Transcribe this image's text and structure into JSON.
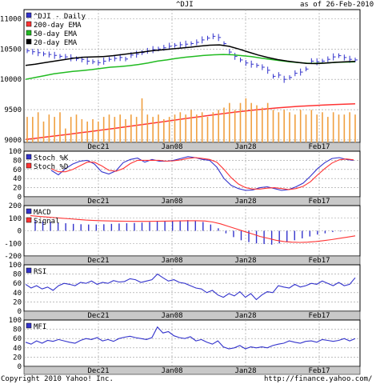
{
  "header": {
    "symbol": "^DJI",
    "as_of": "as of 26-Feb-2010"
  },
  "footer": {
    "copyright": "Copyright 2010 Yahoo! Inc.",
    "url": "http://finance.yahoo.com/"
  },
  "colors": {
    "price": "#3333cc",
    "ema200": "#ff3333",
    "ema50": "#22bb22",
    "ema20": "#000000",
    "volume": "#f0a040",
    "stoch_k": "#3333cc",
    "stoch_d": "#ff3333",
    "macd": "#3333cc",
    "signal": "#ff3333",
    "rsi": "#3333cc",
    "mfi": "#3333cc",
    "band": "#c8c8c8"
  },
  "chart_data": [
    {
      "type": "line",
      "panel": "price",
      "x_ticks": [
        "Dec21",
        "Jan08",
        "Jan28",
        "Feb17"
      ],
      "y_ticks": [
        9000,
        9500,
        10000,
        10500,
        11000
      ],
      "ylim": [
        8960,
        11150
      ],
      "legend": [
        "^DJI - Daily",
        "200-day EMA",
        "50-day EMA",
        "20-day EMA"
      ],
      "series": [
        {
          "name": "^DJI - Daily",
          "kind": "hlc",
          "close": [
            10470,
            10455,
            10440,
            10420,
            10410,
            10395,
            10380,
            10370,
            10355,
            10340,
            10328,
            10300,
            10290,
            10275,
            10300,
            10330,
            10345,
            10360,
            10335,
            10400,
            10415,
            10440,
            10470,
            10490,
            10500,
            10520,
            10545,
            10560,
            10570,
            10580,
            10590,
            10610,
            10650,
            10680,
            10710,
            10690,
            10590,
            10450,
            10380,
            10320,
            10270,
            10250,
            10230,
            10200,
            10150,
            10050,
            10070,
            10000,
            10030,
            10100,
            10120,
            10170,
            10300,
            10290,
            10300,
            10330,
            10370,
            10390,
            10360,
            10330,
            10320
          ]
        },
        {
          "name": "200-day EMA",
          "values": [
            9010,
            9030,
            9052,
            9074,
            9096,
            9119,
            9142,
            9166,
            9190,
            9214,
            9239,
            9264,
            9289,
            9314,
            9339,
            9364,
            9388,
            9412,
            9435,
            9457,
            9478,
            9497,
            9514,
            9530,
            9544,
            9556,
            9566,
            9575,
            9583,
            9590,
            9597
          ]
        },
        {
          "name": "50-day EMA",
          "values": [
            10000,
            10030,
            10060,
            10090,
            10110,
            10130,
            10145,
            10160,
            10180,
            10200,
            10210,
            10225,
            10245,
            10270,
            10300,
            10320,
            10345,
            10365,
            10380,
            10395,
            10405,
            10410,
            10405,
            10390,
            10375,
            10350,
            10330,
            10310,
            10290,
            10275,
            10265,
            10265,
            10270,
            10280,
            10285,
            10290
          ]
        },
        {
          "name": "20-day EMA",
          "values": [
            10230,
            10250,
            10275,
            10300,
            10325,
            10350,
            10365,
            10370,
            10375,
            10390,
            10410,
            10430,
            10450,
            10470,
            10485,
            10500,
            10515,
            10530,
            10548,
            10563,
            10568,
            10545,
            10500,
            10450,
            10400,
            10360,
            10325,
            10300,
            10280,
            10262,
            10260,
            10270,
            10280,
            10290,
            10295
          ]
        },
        {
          "name": "Volume",
          "kind": "bars",
          "values": [
            0.55,
            0.55,
            0.65,
            0.45,
            0.6,
            0.55,
            0.65,
            0.3,
            0.55,
            0.6,
            0.5,
            0.45,
            0.5,
            0.45,
            0.55,
            0.6,
            0.55,
            0.6,
            0.5,
            0.6,
            0.55,
            0.95,
            0.6,
            0.55,
            0.6,
            0.5,
            0.55,
            0.6,
            0.65,
            0.6,
            0.7,
            0.6,
            0.65,
            0.55,
            0.65,
            0.7,
            0.75,
            0.85,
            0.7,
            0.85,
            0.95,
            0.85,
            0.8,
            0.75,
            0.85,
            0.7,
            0.65,
            0.7,
            0.65,
            0.6,
            0.7,
            0.6,
            0.7,
            0.6,
            0.65,
            0.55,
            0.65,
            0.6,
            0.6,
            0.65,
            0.6
          ]
        }
      ]
    },
    {
      "type": "line",
      "panel": "stochastic",
      "x_ticks": [
        "Dec21",
        "Jan08",
        "Jan28",
        "Feb17"
      ],
      "y_ticks": [
        0,
        20,
        40,
        60,
        80,
        100
      ],
      "ylim": [
        0,
        100
      ],
      "legend": [
        "Stoch %K",
        "Stoch %D"
      ],
      "series": [
        {
          "name": "Stoch %K",
          "values": [
            58,
            48,
            62,
            72,
            78,
            80,
            72,
            55,
            50,
            57,
            75,
            82,
            85,
            76,
            82,
            78,
            78,
            80,
            84,
            88,
            86,
            82,
            80,
            65,
            40,
            25,
            18,
            14,
            15,
            20,
            22,
            18,
            14,
            16,
            22,
            30,
            45,
            62,
            75,
            84,
            86,
            82,
            80
          ]
        },
        {
          "name": "Stoch %D",
          "values": [
            62,
            55,
            55,
            60,
            68,
            76,
            76,
            68,
            58,
            56,
            62,
            73,
            80,
            80,
            80,
            80,
            78,
            79,
            81,
            84,
            86,
            84,
            82,
            76,
            60,
            42,
            28,
            20,
            17,
            17,
            19,
            20,
            18,
            16,
            18,
            23,
            33,
            48,
            62,
            74,
            81,
            83,
            81
          ]
        }
      ]
    },
    {
      "type": "line",
      "panel": "macd",
      "x_ticks": [
        "Dec21",
        "Jan08",
        "Jan28",
        "Feb17"
      ],
      "y_ticks": [
        -200,
        -100,
        0,
        100,
        200
      ],
      "ylim": [
        -200,
        200
      ],
      "legend": [
        "MACD",
        "Signal"
      ],
      "series": [
        {
          "name": "MACD",
          "kind": "histogram",
          "values": [
            80,
            75,
            70,
            65,
            60,
            55,
            52,
            50,
            50,
            52,
            55,
            58,
            60,
            62,
            65,
            70,
            75,
            78,
            80,
            82,
            85,
            80,
            70,
            50,
            20,
            -20,
            -50,
            -75,
            -90,
            -100,
            -105,
            -110,
            -100,
            -90,
            -75,
            -60,
            -45,
            -30,
            -20,
            -10,
            -5,
            0
          ]
        },
        {
          "name": "Signal",
          "values": [
            120,
            115,
            110,
            105,
            100,
            95,
            90,
            85,
            82,
            80,
            78,
            77,
            76,
            75,
            75,
            75,
            76,
            77,
            78,
            79,
            80,
            80,
            78,
            70,
            55,
            35,
            15,
            -5,
            -25,
            -45,
            -60,
            -75,
            -85,
            -90,
            -92,
            -90,
            -85,
            -78,
            -70,
            -60,
            -50,
            -40
          ]
        }
      ]
    },
    {
      "type": "line",
      "panel": "rsi",
      "x_ticks": [
        "Dec21",
        "Jan08",
        "Jan28",
        "Feb17"
      ],
      "y_ticks": [
        0,
        20,
        40,
        60,
        80,
        100
      ],
      "ylim": [
        0,
        100
      ],
      "legend": [
        "RSI"
      ],
      "series": [
        {
          "name": "RSI",
          "values": [
            58,
            50,
            55,
            48,
            52,
            45,
            55,
            60,
            58,
            55,
            62,
            60,
            65,
            58,
            62,
            60,
            66,
            63,
            64,
            70,
            68,
            62,
            65,
            68,
            80,
            72,
            65,
            68,
            62,
            60,
            55,
            50,
            48,
            40,
            45,
            35,
            30,
            38,
            33,
            42,
            30,
            38,
            25,
            35,
            42,
            40,
            55,
            52,
            50,
            58,
            52,
            55,
            60,
            58,
            65,
            60,
            55,
            62,
            55,
            58,
            72
          ]
        }
      ]
    },
    {
      "type": "line",
      "panel": "mfi",
      "x_ticks": [
        "Dec21",
        "Jan08",
        "Jan28",
        "Feb17"
      ],
      "y_ticks": [
        0,
        20,
        40,
        60,
        80,
        100
      ],
      "ylim": [
        0,
        100
      ],
      "legend": [
        "MFI"
      ],
      "series": [
        {
          "name": "MFI",
          "values": [
            52,
            48,
            55,
            50,
            56,
            54,
            58,
            55,
            52,
            50,
            56,
            60,
            58,
            62,
            55,
            58,
            54,
            60,
            63,
            65,
            62,
            60,
            58,
            62,
            85,
            72,
            75,
            66,
            62,
            60,
            64,
            55,
            58,
            52,
            48,
            55,
            42,
            38,
            40,
            45,
            38,
            42,
            40,
            42,
            40,
            45,
            48,
            50,
            55,
            52,
            50,
            54,
            55,
            52,
            58,
            56,
            54,
            56,
            60,
            55,
            60
          ]
        }
      ]
    }
  ]
}
